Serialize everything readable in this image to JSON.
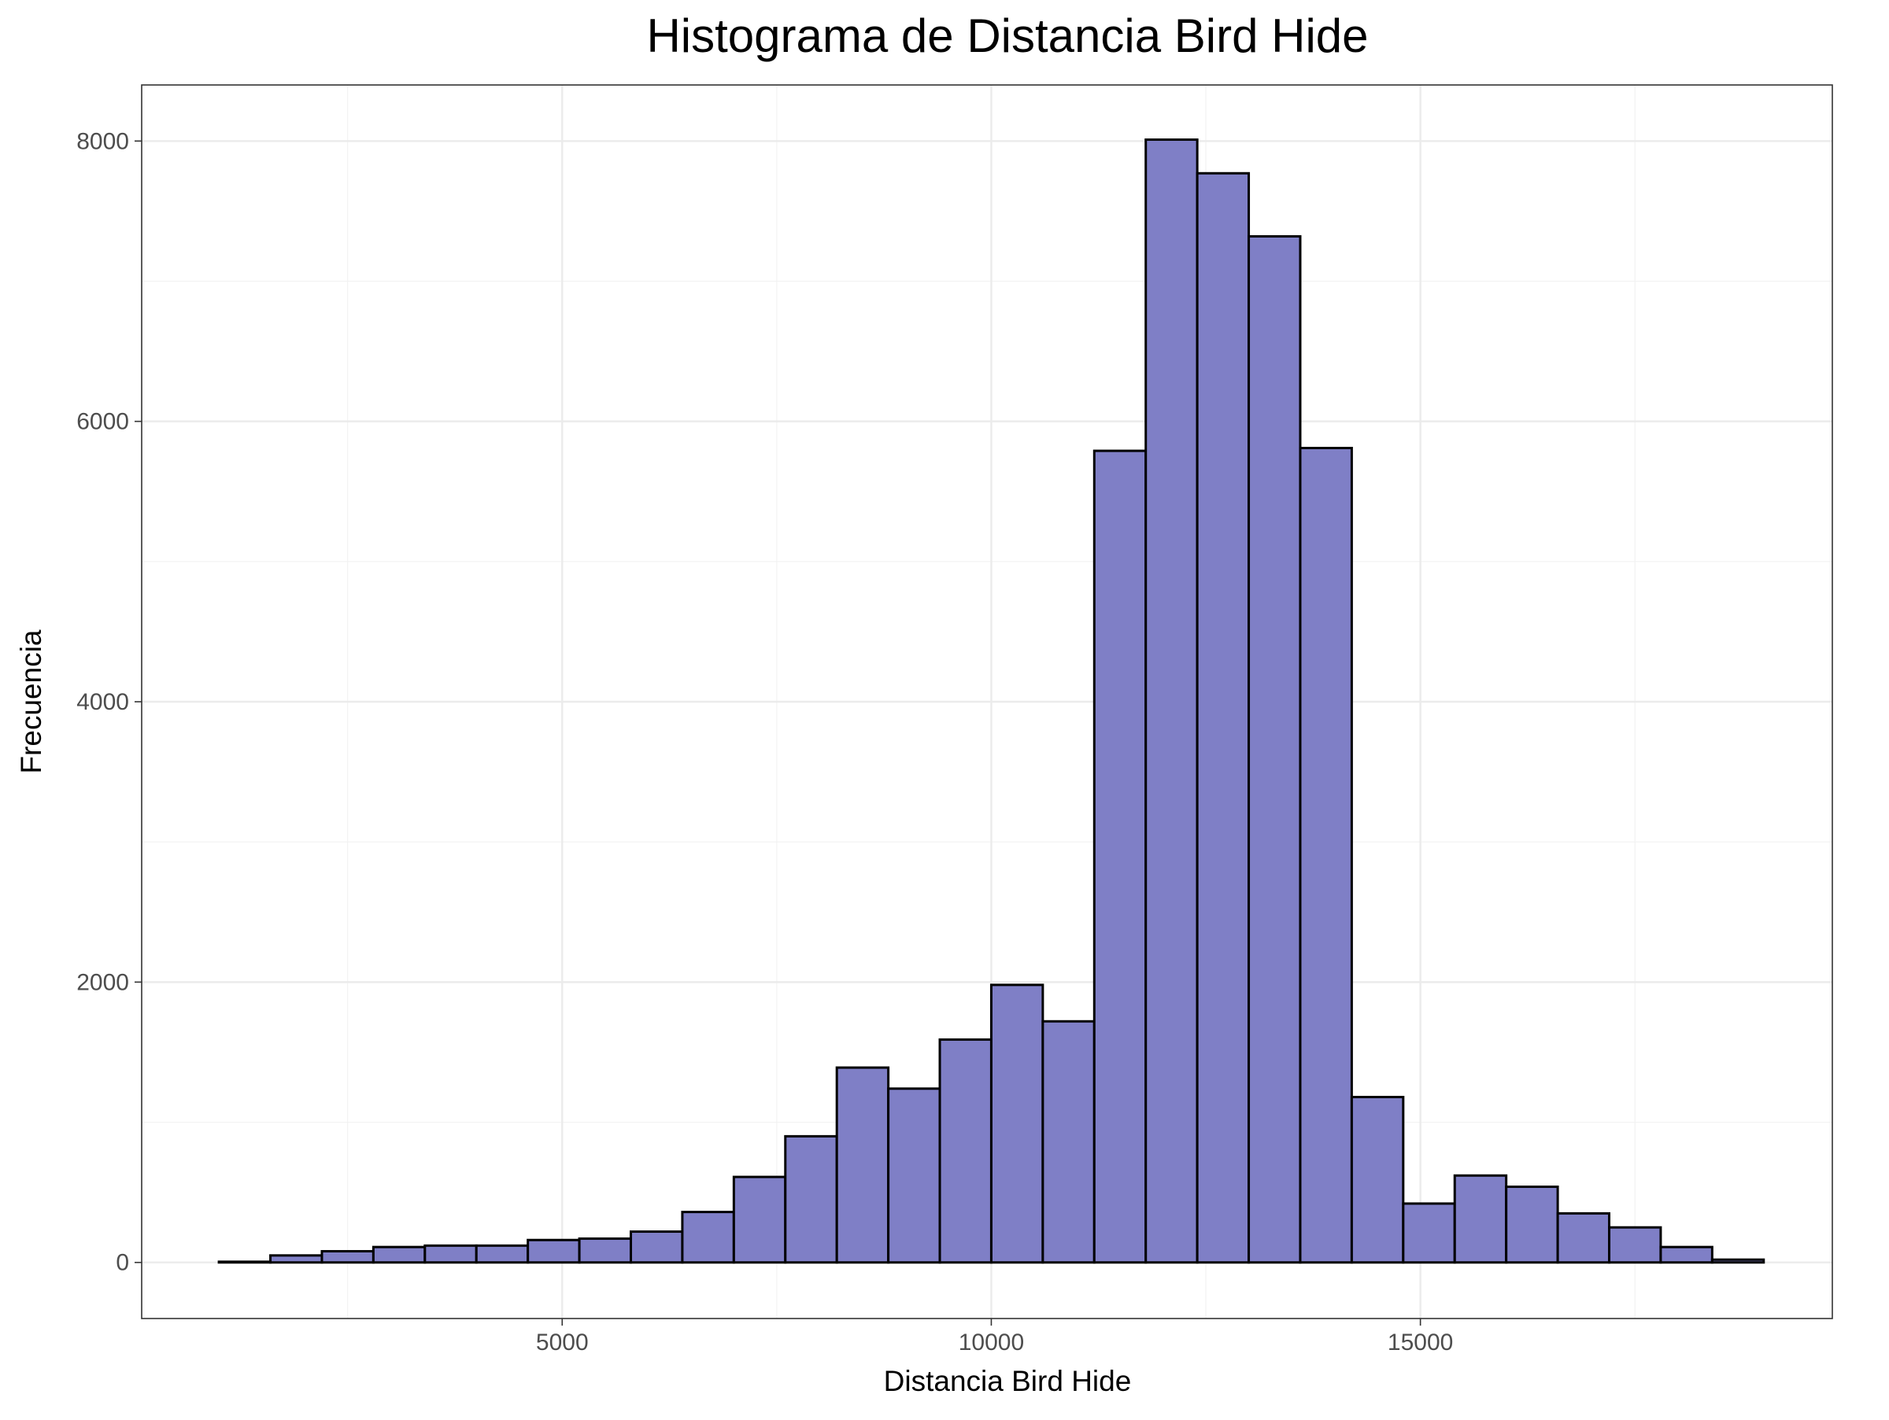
{
  "chart_data": {
    "type": "bar",
    "title": "Histograma de Distancia Bird Hide",
    "xlabel": "Distancia Bird Hide",
    "ylabel": "Frecuencia",
    "xlim": [
      100,
      19800
    ],
    "ylim": [
      -400,
      8400
    ],
    "x_ticks": [
      5000,
      10000,
      15000
    ],
    "x_tick_labels": [
      "5000",
      "10000",
      "15000"
    ],
    "y_ticks": [
      0,
      2000,
      4000,
      6000,
      8000
    ],
    "y_tick_labels": [
      "0",
      "2000",
      "4000",
      "6000",
      "8000"
    ],
    "x_minor_gridlines": [
      2500,
      7500,
      12500,
      17500
    ],
    "y_minor_gridlines": [
      1000,
      3000,
      5000,
      7000
    ],
    "grid": true,
    "bin_width": 600,
    "bins": [
      {
        "start": 1000,
        "end": 1600,
        "count": 5
      },
      {
        "start": 1600,
        "end": 2200,
        "count": 50
      },
      {
        "start": 2200,
        "end": 2800,
        "count": 80
      },
      {
        "start": 2800,
        "end": 3400,
        "count": 110
      },
      {
        "start": 3400,
        "end": 4000,
        "count": 120
      },
      {
        "start": 4000,
        "end": 4600,
        "count": 120
      },
      {
        "start": 4600,
        "end": 5200,
        "count": 160
      },
      {
        "start": 5200,
        "end": 5800,
        "count": 170
      },
      {
        "start": 5800,
        "end": 6400,
        "count": 220
      },
      {
        "start": 6400,
        "end": 7000,
        "count": 360
      },
      {
        "start": 7000,
        "end": 7600,
        "count": 610
      },
      {
        "start": 7600,
        "end": 8200,
        "count": 900
      },
      {
        "start": 8200,
        "end": 8800,
        "count": 1390
      },
      {
        "start": 8800,
        "end": 9400,
        "count": 1240
      },
      {
        "start": 9400,
        "end": 10000,
        "count": 1590
      },
      {
        "start": 10000,
        "end": 10600,
        "count": 1980
      },
      {
        "start": 10600,
        "end": 11200,
        "count": 1720
      },
      {
        "start": 11200,
        "end": 11800,
        "count": 5790
      },
      {
        "start": 11800,
        "end": 12400,
        "count": 8010
      },
      {
        "start": 12400,
        "end": 13000,
        "count": 7770
      },
      {
        "start": 13000,
        "end": 13600,
        "count": 7320
      },
      {
        "start": 13600,
        "end": 14200,
        "count": 5810
      },
      {
        "start": 14200,
        "end": 14800,
        "count": 1180
      },
      {
        "start": 14800,
        "end": 15400,
        "count": 420
      },
      {
        "start": 15400,
        "end": 16000,
        "count": 620
      },
      {
        "start": 16000,
        "end": 16600,
        "count": 540
      },
      {
        "start": 16600,
        "end": 17200,
        "count": 350
      },
      {
        "start": 17200,
        "end": 17800,
        "count": 250
      },
      {
        "start": 17800,
        "end": 18400,
        "count": 110
      },
      {
        "start": 18400,
        "end": 19000,
        "count": 20
      }
    ],
    "colors": {
      "bar_fill": "#7f7fc6",
      "bar_stroke": "#000000",
      "panel_border": "#333333",
      "grid_major": "#ebebeb",
      "grid_minor": "#f2f2f2"
    }
  }
}
